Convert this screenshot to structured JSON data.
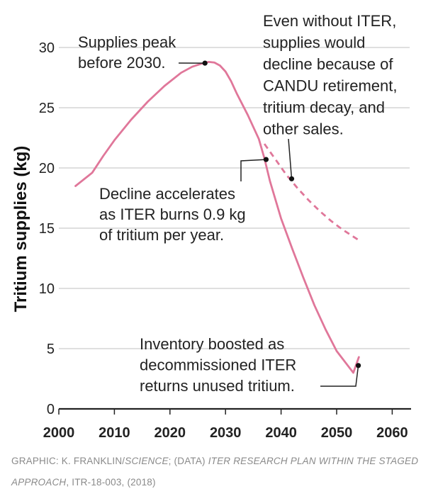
{
  "chart_data": {
    "type": "line",
    "ylabel": "Tritium supplies (kg)",
    "xlim": [
      2000,
      2062
    ],
    "ylim": [
      0,
      31
    ],
    "x_ticks": [
      2000,
      2010,
      2020,
      2030,
      2040,
      2050,
      2060
    ],
    "y_ticks": [
      0,
      5,
      10,
      15,
      20,
      25,
      30
    ],
    "grid": "horizontal",
    "series": [
      {
        "style": "solid",
        "color": "#e0779a",
        "x": [
          2003,
          2006,
          2008,
          2010,
          2013,
          2016,
          2019,
          2022,
          2024,
          2026,
          2027,
          2028,
          2029,
          2030,
          2031,
          2032,
          2034,
          2036,
          2037,
          2038,
          2040,
          2042,
          2044,
          2046,
          2048,
          2050,
          2052,
          2053,
          2054
        ],
        "y": [
          18.5,
          19.6,
          21.0,
          22.3,
          24.0,
          25.5,
          26.8,
          27.9,
          28.4,
          28.7,
          28.8,
          28.75,
          28.5,
          28.0,
          27.2,
          26.2,
          24.4,
          22.4,
          20.8,
          18.9,
          15.8,
          13.3,
          10.9,
          8.6,
          6.6,
          4.8,
          3.6,
          3.0,
          4.3
        ]
      },
      {
        "style": "dashed",
        "color": "#e0779a",
        "x": [
          2037,
          2039,
          2041,
          2043,
          2045,
          2047,
          2049,
          2051,
          2053,
          2054
        ],
        "y": [
          22.0,
          20.7,
          19.4,
          18.3,
          17.3,
          16.4,
          15.6,
          14.9,
          14.3,
          14.0
        ]
      }
    ],
    "annotations": [
      {
        "id": "peak",
        "lines": [
          "Supplies peak",
          "before 2030."
        ],
        "point": [
          2026.3,
          28.7
        ]
      },
      {
        "id": "without",
        "lines": [
          "Even without ITER,",
          "supplies would",
          "decline because of",
          "CANDU retirement,",
          "tritium decay, and",
          "other sales."
        ],
        "point": [
          2041.9,
          19.1
        ]
      },
      {
        "id": "decline",
        "lines": [
          "Decline accelerates",
          "as ITER burns 0.9 kg",
          "of tritium per year."
        ],
        "point": [
          2037.3,
          20.7
        ]
      },
      {
        "id": "inventory",
        "lines": [
          "Inventory boosted as",
          "decommissioned ITER",
          "returns unused tritium."
        ],
        "point": [
          2053.9,
          3.6
        ]
      }
    ]
  },
  "credit": {
    "prefix": "GRAPHIC: K. FRANKLIN/",
    "source_pub": "SCIENCE",
    "mid": "; (DATA) ",
    "report": "ITER RESEARCH PLAN WITHIN THE STAGED APPROACH",
    "suffix": ", ITR-18-003, (2018)"
  }
}
